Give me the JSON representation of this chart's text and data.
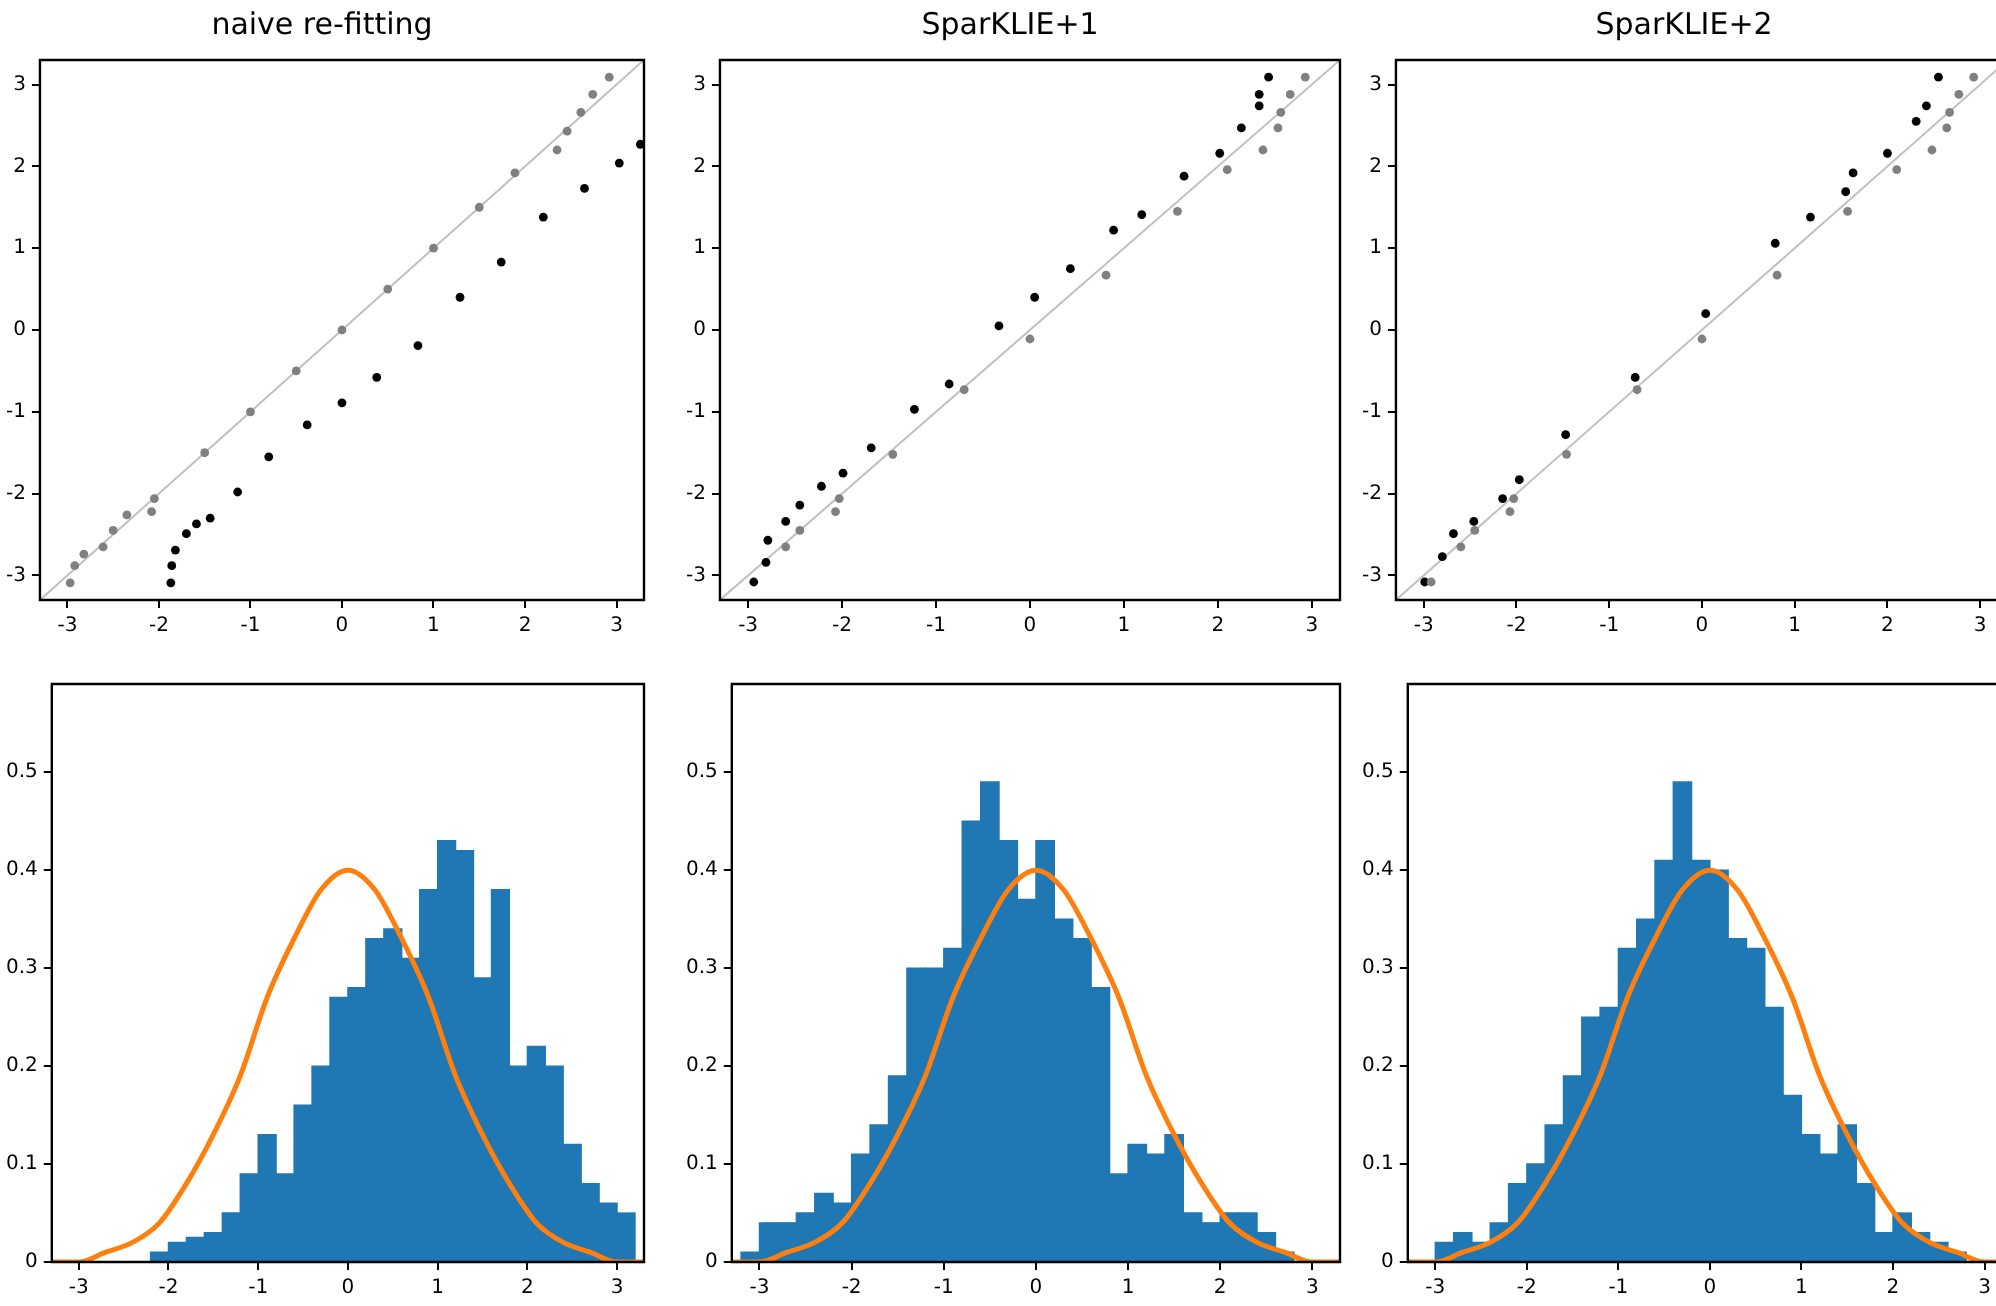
{
  "chart_data": [
    {
      "type": "scatter",
      "title": "naive re-fitting",
      "marker": "circle",
      "grid": false,
      "xlim": [
        -3.3,
        3.3
      ],
      "ylim": [
        -3.3,
        3.3
      ],
      "xticks": [
        -3,
        -2,
        -1,
        0,
        1,
        2,
        3
      ],
      "yticks": [
        -3,
        -2,
        -1,
        0,
        1,
        2,
        3
      ],
      "series": [
        {
          "type": "line",
          "x": [
            -3.3,
            3.3
          ],
          "values": [
            -3.3,
            3.3
          ],
          "color": "#c0c0c0",
          "marker": "none"
        },
        {
          "x": [
            -2.97,
            -2.92,
            -2.82,
            -2.61,
            -2.5,
            -2.35,
            -2.08,
            -2.05,
            -1.5,
            -1,
            -0.5,
            0,
            0.5,
            1,
            1.5,
            1.89,
            2.35,
            2.46,
            2.61,
            2.74,
            2.92
          ],
          "values": [
            -3.09,
            -2.88,
            -2.74,
            -2.65,
            -2.45,
            -2.26,
            -2.22,
            -2.06,
            -1.5,
            -1,
            -0.5,
            0,
            0.5,
            1,
            1.5,
            1.92,
            2.2,
            2.43,
            2.66,
            2.88,
            3.09
          ],
          "color": "#808080"
        },
        {
          "x": [
            -1.87,
            -1.86,
            -1.82,
            -1.7,
            -1.59,
            -1.44,
            -1.14,
            -0.8,
            -0.38,
            0,
            0.38,
            0.83,
            1.29,
            1.74,
            2.2,
            2.65,
            3.03,
            3.26
          ],
          "values": [
            -3.09,
            -2.88,
            -2.69,
            -2.49,
            -2.37,
            -2.3,
            -1.98,
            -1.55,
            -1.16,
            -0.89,
            -0.58,
            -0.19,
            0.4,
            0.83,
            1.38,
            1.73,
            2.04,
            2.27
          ],
          "color": "#000000"
        }
      ]
    },
    {
      "type": "scatter",
      "title": "SparKLIE+1",
      "marker": "circle",
      "grid": false,
      "xlim": [
        -3.3,
        3.3
      ],
      "ylim": [
        -3.3,
        3.3
      ],
      "xticks": [
        -3,
        -2,
        -1,
        0,
        1,
        2,
        3
      ],
      "yticks": [
        -3,
        -2,
        -1,
        0,
        1,
        2,
        3
      ],
      "series": [
        {
          "type": "line",
          "x": [
            -3.3,
            3.3
          ],
          "values": [
            -3.3,
            3.3
          ],
          "color": "#c0c0c0",
          "marker": "none"
        },
        {
          "x": [
            -2.6,
            -2.45,
            -2.07,
            -2.03,
            -1.46,
            -0.7,
            0,
            0.81,
            1.57,
            2.1,
            2.48,
            2.64,
            2.67,
            2.77,
            2.93
          ],
          "values": [
            -2.65,
            -2.45,
            -2.22,
            -2.06,
            -1.52,
            -0.73,
            -0.11,
            0.67,
            1.45,
            1.96,
            2.2,
            2.47,
            2.66,
            2.88,
            3.09
          ],
          "color": "#808080"
        },
        {
          "x": [
            -2.94,
            -2.81,
            -2.79,
            -2.6,
            -2.45,
            -2.22,
            -1.99,
            -1.69,
            -1.23,
            -0.86,
            -0.33,
            0.05,
            0.43,
            0.89,
            1.19,
            1.64,
            2.02,
            2.25,
            2.44,
            2.44,
            2.54
          ],
          "values": [
            -3.08,
            -2.84,
            -2.57,
            -2.34,
            -2.14,
            -1.91,
            -1.75,
            -1.44,
            -0.97,
            -0.66,
            0.05,
            0.4,
            0.75,
            1.22,
            1.41,
            1.88,
            2.16,
            2.47,
            2.74,
            2.88,
            3.09
          ],
          "color": "#000000"
        }
      ]
    },
    {
      "type": "scatter",
      "title": "SparKLIE+2",
      "marker": "circle",
      "grid": false,
      "xlim": [
        -3.3,
        3.3
      ],
      "ylim": [
        -3.3,
        3.3
      ],
      "xticks": [
        -3,
        -2,
        -1,
        0,
        1,
        2,
        3
      ],
      "yticks": [
        -3,
        -2,
        -1,
        0,
        1,
        2,
        3
      ],
      "series": [
        {
          "type": "line",
          "x": [
            -3.3,
            3.3
          ],
          "values": [
            -3.3,
            3.3
          ],
          "color": "#c0c0c0",
          "marker": "none"
        },
        {
          "x": [
            -2.92,
            -2.6,
            -2.45,
            -2.07,
            -2.03,
            -1.46,
            -0.7,
            0,
            0.81,
            1.57,
            2.1,
            2.48,
            2.64,
            2.67,
            2.77,
            2.93
          ],
          "values": [
            -3.08,
            -2.65,
            -2.45,
            -2.22,
            -2.06,
            -1.52,
            -0.73,
            -0.11,
            0.67,
            1.45,
            1.96,
            2.2,
            2.47,
            2.66,
            2.88,
            3.09
          ],
          "color": "#808080"
        },
        {
          "x": [
            -2.99,
            -2.8,
            -2.68,
            -2.46,
            -2.15,
            -1.97,
            -1.47,
            -0.72,
            0.04,
            0.79,
            1.17,
            1.55,
            1.63,
            2,
            2.31,
            2.42,
            2.55
          ],
          "values": [
            -3.08,
            -2.77,
            -2.49,
            -2.34,
            -2.06,
            -1.83,
            -1.28,
            -0.58,
            0.2,
            1.06,
            1.38,
            1.69,
            1.92,
            2.16,
            2.55,
            2.74,
            3.09
          ],
          "color": "#000000"
        }
      ]
    },
    {
      "type": "histogram",
      "grid": false,
      "xlim": [
        -3.3,
        3.3
      ],
      "ylim": [
        0,
        0.59
      ],
      "xticks": [
        -3,
        -2,
        -1,
        0,
        1,
        2,
        3
      ],
      "yticks": [
        0,
        0.1,
        0.2,
        0.3,
        0.4,
        0.5
      ],
      "series": [
        {
          "type": "histogram",
          "bins": [
            -3.2,
            -3,
            -2.8,
            -2.6,
            -2.4,
            -2.2,
            -2,
            -1.8,
            -1.6,
            -1.4,
            -1.2,
            -1,
            -0.8,
            -0.6,
            -0.4,
            -0.2,
            0,
            0.2,
            0.4,
            0.6,
            0.8,
            1,
            1.2,
            1.4,
            1.6,
            1.8,
            2,
            2.2,
            2.4,
            2.6,
            2.8,
            3,
            3.2
          ],
          "values": [
            0,
            0,
            0,
            0,
            0,
            0.01,
            0.02,
            0.025,
            0.03,
            0.05,
            0.09,
            0.13,
            0.09,
            0.16,
            0.2,
            0.27,
            0.28,
            0.33,
            0.34,
            0.31,
            0.38,
            0.43,
            0.42,
            0.29,
            0.38,
            0.2,
            0.22,
            0.2,
            0.12,
            0.08,
            0.06,
            0.05
          ],
          "color": "#1f77b4"
        },
        {
          "type": "line",
          "x": [
            -3.3,
            -3,
            -2.7,
            -2.4,
            -2.1,
            -1.8,
            -1.5,
            -1.2,
            -0.9,
            -0.6,
            -0.3,
            0,
            0.3,
            0.6,
            0.9,
            1.2,
            1.5,
            1.8,
            2.1,
            2.4,
            2.7,
            3,
            3.3
          ],
          "values": [
            0,
            0,
            0.01,
            0.02,
            0.04,
            0.08,
            0.13,
            0.19,
            0.27,
            0.33,
            0.38,
            0.4,
            0.38,
            0.33,
            0.27,
            0.19,
            0.13,
            0.08,
            0.04,
            0.02,
            0.01,
            0,
            0
          ],
          "color": "#ff7f0e"
        }
      ]
    },
    {
      "type": "histogram",
      "grid": false,
      "xlim": [
        -3.3,
        3.3
      ],
      "ylim": [
        0,
        0.59
      ],
      "xticks": [
        -3,
        -2,
        -1,
        0,
        1,
        2,
        3
      ],
      "yticks": [
        0,
        0.1,
        0.2,
        0.3,
        0.4,
        0.5
      ],
      "series": [
        {
          "type": "histogram",
          "bins": [
            -3.2,
            -3,
            -2.8,
            -2.6,
            -2.4,
            -2.2,
            -2,
            -1.8,
            -1.6,
            -1.4,
            -1.2,
            -1,
            -0.8,
            -0.6,
            -0.4,
            -0.2,
            0,
            0.2,
            0.4,
            0.6,
            0.8,
            1,
            1.2,
            1.4,
            1.6,
            1.8,
            2,
            2.2,
            2.4,
            2.6,
            2.8,
            3,
            3.2
          ],
          "values": [
            0.01,
            0.04,
            0.04,
            0.05,
            0.07,
            0.06,
            0.11,
            0.14,
            0.19,
            0.3,
            0.3,
            0.32,
            0.45,
            0.49,
            0.43,
            0.37,
            0.43,
            0.35,
            0.33,
            0.28,
            0.09,
            0.12,
            0.11,
            0.13,
            0.05,
            0.04,
            0.05,
            0.05,
            0.03,
            0.01,
            0,
            0
          ],
          "color": "#1f77b4"
        },
        {
          "type": "line",
          "x": [
            -3.3,
            -3,
            -2.7,
            -2.4,
            -2.1,
            -1.8,
            -1.5,
            -1.2,
            -0.9,
            -0.6,
            -0.3,
            0,
            0.3,
            0.6,
            0.9,
            1.2,
            1.5,
            1.8,
            2.1,
            2.4,
            2.7,
            3,
            3.3
          ],
          "values": [
            0,
            0,
            0.01,
            0.02,
            0.04,
            0.08,
            0.13,
            0.19,
            0.27,
            0.33,
            0.38,
            0.4,
            0.38,
            0.33,
            0.27,
            0.19,
            0.13,
            0.08,
            0.04,
            0.02,
            0.01,
            0,
            0
          ],
          "color": "#ff7f0e"
        }
      ]
    },
    {
      "type": "histogram",
      "grid": false,
      "xlim": [
        -3.3,
        3.3
      ],
      "ylim": [
        0,
        0.59
      ],
      "xticks": [
        -3,
        -2,
        -1,
        0,
        1,
        2,
        3
      ],
      "yticks": [
        0,
        0.1,
        0.2,
        0.3,
        0.4,
        0.5
      ],
      "series": [
        {
          "type": "histogram",
          "bins": [
            -3.2,
            -3,
            -2.8,
            -2.6,
            -2.4,
            -2.2,
            -2,
            -1.8,
            -1.6,
            -1.4,
            -1.2,
            -1,
            -0.8,
            -0.6,
            -0.4,
            -0.2,
            0,
            0.2,
            0.4,
            0.6,
            0.8,
            1,
            1.2,
            1.4,
            1.6,
            1.8,
            2,
            2.2,
            2.4,
            2.6,
            2.8,
            3,
            3.2
          ],
          "values": [
            0,
            0.02,
            0.03,
            0.02,
            0.04,
            0.08,
            0.1,
            0.14,
            0.19,
            0.25,
            0.26,
            0.32,
            0.35,
            0.41,
            0.49,
            0.41,
            0.4,
            0.33,
            0.32,
            0.26,
            0.17,
            0.13,
            0.11,
            0.14,
            0.08,
            0.03,
            0.05,
            0.03,
            0.02,
            0.01,
            0,
            0
          ],
          "color": "#1f77b4"
        },
        {
          "type": "line",
          "x": [
            -3.3,
            -3,
            -2.7,
            -2.4,
            -2.1,
            -1.8,
            -1.5,
            -1.2,
            -0.9,
            -0.6,
            -0.3,
            0,
            0.3,
            0.6,
            0.9,
            1.2,
            1.5,
            1.8,
            2.1,
            2.4,
            2.7,
            3,
            3.3
          ],
          "values": [
            0,
            0,
            0.01,
            0.02,
            0.04,
            0.08,
            0.13,
            0.19,
            0.27,
            0.33,
            0.38,
            0.4,
            0.38,
            0.33,
            0.27,
            0.19,
            0.13,
            0.08,
            0.04,
            0.02,
            0.01,
            0,
            0
          ],
          "color": "#ff7f0e"
        }
      ]
    }
  ]
}
